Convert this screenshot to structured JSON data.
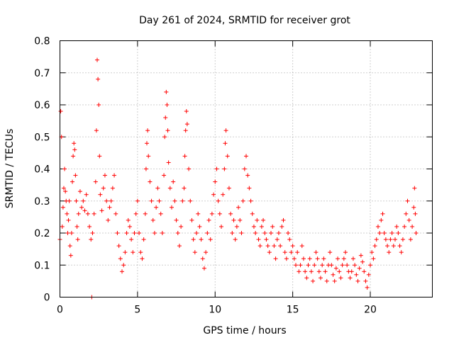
{
  "chart_data": {
    "type": "scatter",
    "title": "Day 261 of 2024, SRMTID for receiver grot",
    "xlabel": "GPS time / hours",
    "ylabel": "SRMTID / TECUs",
    "xlim": [
      0,
      24
    ],
    "ylim": [
      0,
      0.8
    ],
    "xticks": [
      0,
      5,
      10,
      15,
      20
    ],
    "yticks": [
      0,
      0.1,
      0.2,
      0.3,
      0.4,
      0.5,
      0.6,
      0.7,
      0.8
    ],
    "xtick_labels": [
      "0",
      "5",
      "10",
      "15",
      "20"
    ],
    "ytick_labels": [
      "0",
      "0.1",
      "0.2",
      "0.3",
      "0.4",
      "0.5",
      "0.6",
      "0.7",
      "0.8"
    ],
    "grid": true,
    "marker": "+",
    "color": "#ff0000",
    "series": [
      {
        "name": "SRMTID",
        "points": [
          [
            0.0,
            0.18
          ],
          [
            0.05,
            0.58
          ],
          [
            0.1,
            0.5
          ],
          [
            0.15,
            0.22
          ],
          [
            0.2,
            0.28
          ],
          [
            0.25,
            0.34
          ],
          [
            0.3,
            0.4
          ],
          [
            0.35,
            0.33
          ],
          [
            0.4,
            0.3
          ],
          [
            0.45,
            0.26
          ],
          [
            0.5,
            0.2
          ],
          [
            0.55,
            0.24
          ],
          [
            0.6,
            0.3
          ],
          [
            0.65,
            0.16
          ],
          [
            0.7,
            0.13
          ],
          [
            0.75,
            0.2
          ],
          [
            0.8,
            0.36
          ],
          [
            0.85,
            0.44
          ],
          [
            0.9,
            0.48
          ],
          [
            0.95,
            0.46
          ],
          [
            1.0,
            0.38
          ],
          [
            1.05,
            0.3
          ],
          [
            1.1,
            0.22
          ],
          [
            1.15,
            0.18
          ],
          [
            1.2,
            0.26
          ],
          [
            1.3,
            0.33
          ],
          [
            1.4,
            0.28
          ],
          [
            1.5,
            0.3
          ],
          [
            1.6,
            0.27
          ],
          [
            1.7,
            0.32
          ],
          [
            1.8,
            0.26
          ],
          [
            1.9,
            0.22
          ],
          [
            2.0,
            0.18
          ],
          [
            2.05,
            0.0
          ],
          [
            2.1,
            0.2
          ],
          [
            2.2,
            0.26
          ],
          [
            2.3,
            0.36
          ],
          [
            2.35,
            0.52
          ],
          [
            2.4,
            0.74
          ],
          [
            2.45,
            0.68
          ],
          [
            2.5,
            0.6
          ],
          [
            2.55,
            0.44
          ],
          [
            2.6,
            0.32
          ],
          [
            2.7,
            0.27
          ],
          [
            2.8,
            0.34
          ],
          [
            2.9,
            0.38
          ],
          [
            3.0,
            0.3
          ],
          [
            3.1,
            0.24
          ],
          [
            3.2,
            0.28
          ],
          [
            3.3,
            0.3
          ],
          [
            3.4,
            0.34
          ],
          [
            3.5,
            0.38
          ],
          [
            3.6,
            0.26
          ],
          [
            3.7,
            0.2
          ],
          [
            3.8,
            0.16
          ],
          [
            3.9,
            0.12
          ],
          [
            4.0,
            0.08
          ],
          [
            4.1,
            0.1
          ],
          [
            4.2,
            0.14
          ],
          [
            4.3,
            0.2
          ],
          [
            4.4,
            0.24
          ],
          [
            4.5,
            0.22
          ],
          [
            4.6,
            0.18
          ],
          [
            4.7,
            0.14
          ],
          [
            4.8,
            0.2
          ],
          [
            4.9,
            0.26
          ],
          [
            5.0,
            0.3
          ],
          [
            5.1,
            0.2
          ],
          [
            5.2,
            0.14
          ],
          [
            5.3,
            0.12
          ],
          [
            5.4,
            0.18
          ],
          [
            5.5,
            0.26
          ],
          [
            5.55,
            0.4
          ],
          [
            5.6,
            0.48
          ],
          [
            5.65,
            0.52
          ],
          [
            5.7,
            0.44
          ],
          [
            5.8,
            0.36
          ],
          [
            5.9,
            0.3
          ],
          [
            6.0,
            0.24
          ],
          [
            6.1,
            0.2
          ],
          [
            6.2,
            0.28
          ],
          [
            6.3,
            0.34
          ],
          [
            6.4,
            0.3
          ],
          [
            6.5,
            0.26
          ],
          [
            6.6,
            0.2
          ],
          [
            6.7,
            0.38
          ],
          [
            6.75,
            0.5
          ],
          [
            6.8,
            0.56
          ],
          [
            6.85,
            0.64
          ],
          [
            6.9,
            0.6
          ],
          [
            6.95,
            0.52
          ],
          [
            7.0,
            0.42
          ],
          [
            7.1,
            0.34
          ],
          [
            7.2,
            0.28
          ],
          [
            7.3,
            0.36
          ],
          [
            7.4,
            0.3
          ],
          [
            7.5,
            0.24
          ],
          [
            7.6,
            0.2
          ],
          [
            7.7,
            0.16
          ],
          [
            7.8,
            0.22
          ],
          [
            7.9,
            0.3
          ],
          [
            8.0,
            0.34
          ],
          [
            8.05,
            0.44
          ],
          [
            8.1,
            0.52
          ],
          [
            8.15,
            0.58
          ],
          [
            8.2,
            0.54
          ],
          [
            8.3,
            0.4
          ],
          [
            8.4,
            0.3
          ],
          [
            8.5,
            0.24
          ],
          [
            8.6,
            0.18
          ],
          [
            8.7,
            0.14
          ],
          [
            8.8,
            0.2
          ],
          [
            8.9,
            0.26
          ],
          [
            9.0,
            0.22
          ],
          [
            9.1,
            0.18
          ],
          [
            9.2,
            0.12
          ],
          [
            9.3,
            0.09
          ],
          [
            9.4,
            0.14
          ],
          [
            9.5,
            0.2
          ],
          [
            9.6,
            0.24
          ],
          [
            9.7,
            0.18
          ],
          [
            9.8,
            0.26
          ],
          [
            9.9,
            0.32
          ],
          [
            10.0,
            0.36
          ],
          [
            10.1,
            0.4
          ],
          [
            10.2,
            0.3
          ],
          [
            10.3,
            0.26
          ],
          [
            10.4,
            0.22
          ],
          [
            10.5,
            0.32
          ],
          [
            10.6,
            0.4
          ],
          [
            10.65,
            0.48
          ],
          [
            10.7,
            0.52
          ],
          [
            10.8,
            0.44
          ],
          [
            10.9,
            0.34
          ],
          [
            11.0,
            0.26
          ],
          [
            11.1,
            0.2
          ],
          [
            11.2,
            0.24
          ],
          [
            11.3,
            0.18
          ],
          [
            11.4,
            0.22
          ],
          [
            11.5,
            0.28
          ],
          [
            11.6,
            0.24
          ],
          [
            11.7,
            0.2
          ],
          [
            11.8,
            0.3
          ],
          [
            11.9,
            0.4
          ],
          [
            12.0,
            0.44
          ],
          [
            12.1,
            0.38
          ],
          [
            12.2,
            0.34
          ],
          [
            12.3,
            0.3
          ],
          [
            12.4,
            0.26
          ],
          [
            12.5,
            0.22
          ],
          [
            12.6,
            0.2
          ],
          [
            12.7,
            0.24
          ],
          [
            12.8,
            0.18
          ],
          [
            12.9,
            0.16
          ],
          [
            13.0,
            0.22
          ],
          [
            13.1,
            0.24
          ],
          [
            13.2,
            0.2
          ],
          [
            13.3,
            0.18
          ],
          [
            13.4,
            0.16
          ],
          [
            13.5,
            0.14
          ],
          [
            13.6,
            0.2
          ],
          [
            13.7,
            0.22
          ],
          [
            13.8,
            0.16
          ],
          [
            13.9,
            0.12
          ],
          [
            14.0,
            0.18
          ],
          [
            14.1,
            0.2
          ],
          [
            14.2,
            0.16
          ],
          [
            14.3,
            0.22
          ],
          [
            14.4,
            0.24
          ],
          [
            14.5,
            0.14
          ],
          [
            14.6,
            0.12
          ],
          [
            14.7,
            0.2
          ],
          [
            14.8,
            0.18
          ],
          [
            14.9,
            0.14
          ],
          [
            15.0,
            0.16
          ],
          [
            15.1,
            0.12
          ],
          [
            15.2,
            0.1
          ],
          [
            15.3,
            0.14
          ],
          [
            15.4,
            0.08
          ],
          [
            15.5,
            0.1
          ],
          [
            15.6,
            0.16
          ],
          [
            15.7,
            0.12
          ],
          [
            15.8,
            0.08
          ],
          [
            15.9,
            0.06
          ],
          [
            16.0,
            0.1
          ],
          [
            16.1,
            0.12
          ],
          [
            16.2,
            0.08
          ],
          [
            16.3,
            0.05
          ],
          [
            16.4,
            0.1
          ],
          [
            16.5,
            0.14
          ],
          [
            16.6,
            0.12
          ],
          [
            16.7,
            0.08
          ],
          [
            16.8,
            0.06
          ],
          [
            16.9,
            0.1
          ],
          [
            17.0,
            0.12
          ],
          [
            17.1,
            0.08
          ],
          [
            17.2,
            0.05
          ],
          [
            17.3,
            0.1
          ],
          [
            17.4,
            0.14
          ],
          [
            17.5,
            0.1
          ],
          [
            17.6,
            0.07
          ],
          [
            17.7,
            0.05
          ],
          [
            17.8,
            0.09
          ],
          [
            17.9,
            0.12
          ],
          [
            18.0,
            0.08
          ],
          [
            18.1,
            0.06
          ],
          [
            18.2,
            0.1
          ],
          [
            18.3,
            0.12
          ],
          [
            18.4,
            0.14
          ],
          [
            18.5,
            0.1
          ],
          [
            18.6,
            0.08
          ],
          [
            18.7,
            0.06
          ],
          [
            18.8,
            0.08
          ],
          [
            18.9,
            0.12
          ],
          [
            19.0,
            0.1
          ],
          [
            19.1,
            0.07
          ],
          [
            19.2,
            0.05
          ],
          [
            19.3,
            0.09
          ],
          [
            19.4,
            0.13
          ],
          [
            19.5,
            0.11
          ],
          [
            19.6,
            0.08
          ],
          [
            19.7,
            0.05
          ],
          [
            19.8,
            0.03
          ],
          [
            19.9,
            0.07
          ],
          [
            20.0,
            0.1
          ],
          [
            20.1,
            0.14
          ],
          [
            20.2,
            0.12
          ],
          [
            20.3,
            0.16
          ],
          [
            20.4,
            0.18
          ],
          [
            20.5,
            0.22
          ],
          [
            20.6,
            0.2
          ],
          [
            20.7,
            0.24
          ],
          [
            20.8,
            0.26
          ],
          [
            20.9,
            0.2
          ],
          [
            21.0,
            0.18
          ],
          [
            21.1,
            0.16
          ],
          [
            21.2,
            0.14
          ],
          [
            21.3,
            0.18
          ],
          [
            21.4,
            0.2
          ],
          [
            21.5,
            0.16
          ],
          [
            21.6,
            0.18
          ],
          [
            21.7,
            0.22
          ],
          [
            21.8,
            0.2
          ],
          [
            21.9,
            0.16
          ],
          [
            22.0,
            0.14
          ],
          [
            22.1,
            0.18
          ],
          [
            22.2,
            0.22
          ],
          [
            22.3,
            0.26
          ],
          [
            22.4,
            0.3
          ],
          [
            22.5,
            0.24
          ],
          [
            22.6,
            0.18
          ],
          [
            22.7,
            0.22
          ],
          [
            22.8,
            0.28
          ],
          [
            22.85,
            0.34
          ],
          [
            22.9,
            0.26
          ],
          [
            22.95,
            0.2
          ]
        ]
      }
    ]
  }
}
